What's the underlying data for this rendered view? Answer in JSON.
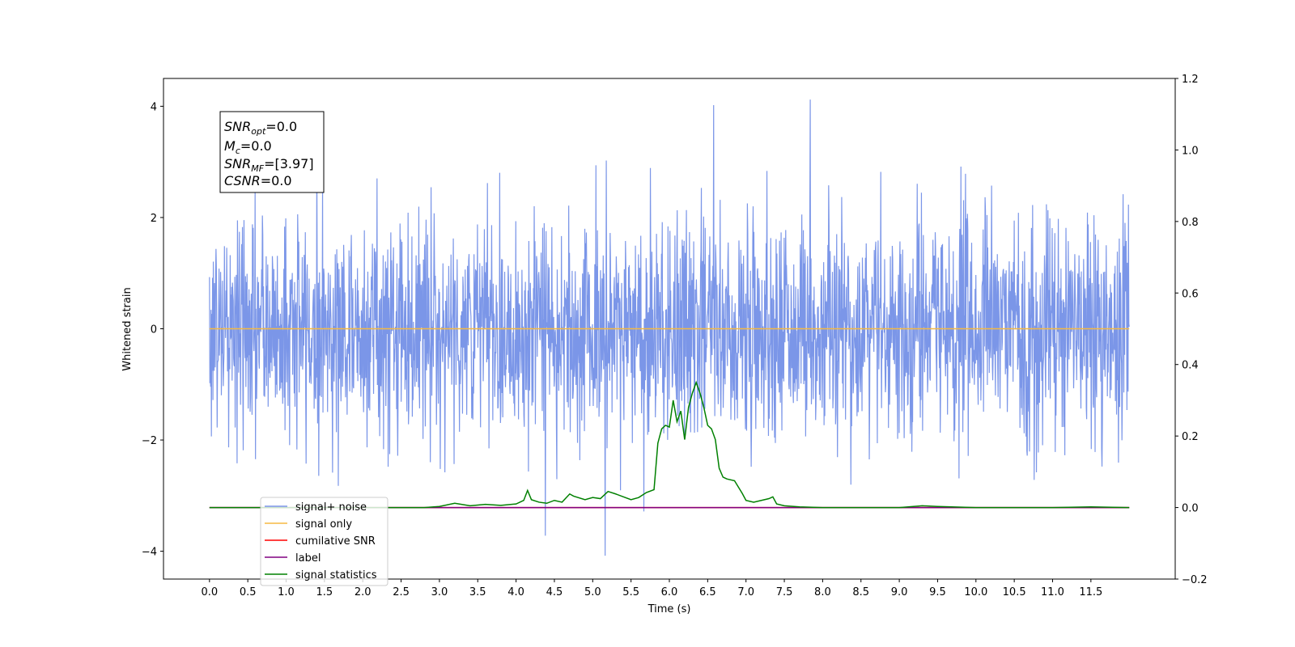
{
  "chart_data": {
    "type": "line",
    "xlabel": "Time (s)",
    "ylabel": "Whitened strain",
    "xlim": [
      -0.6,
      12.6
    ],
    "ylim": [
      -4.5,
      4.5
    ],
    "y2lim": [
      -0.2,
      1.2
    ],
    "x_ticks": [
      "0.0",
      "0.5",
      "1.0",
      "1.5",
      "2.0",
      "2.5",
      "3.0",
      "3.5",
      "4.0",
      "4.5",
      "5.0",
      "5.5",
      "6.0",
      "6.5",
      "7.0",
      "7.5",
      "8.0",
      "8.5",
      "9.0",
      "9.5",
      "10.0",
      "10.5",
      "11.0",
      "11.5"
    ],
    "y_ticks": [
      "-4",
      "-2",
      "0",
      "2",
      "4"
    ],
    "y2_ticks": [
      "-0.2",
      "0.0",
      "0.2",
      "0.4",
      "0.6",
      "0.8",
      "1.0",
      "1.2"
    ],
    "stats_box": {
      "snr_opt": {
        "sym": "SNR",
        "sub": "opt",
        "value": "=0.0"
      },
      "mc": {
        "sym": "M",
        "sub": "c",
        "value": "=0.0"
      },
      "snr_mf": {
        "sym": "SNR",
        "sub": "MF",
        "value": "=[3.97]"
      },
      "csnr": {
        "sym": "CSNR",
        "value": "=0.0"
      }
    },
    "noise": {
      "t_start": 0.0,
      "t_end": 12.0,
      "samples": 2400,
      "std": 1.0,
      "peak_max": 4.12,
      "peak_min": -4.08
    },
    "series": [
      {
        "name": "signal+ noise",
        "color": "#7b96e8",
        "axis": "left",
        "values": "noise"
      },
      {
        "name": "signal only",
        "color": "#f5b942",
        "axis": "left",
        "x": [
          0,
          12
        ],
        "y": [
          0,
          0
        ]
      },
      {
        "name": "cumilative SNR",
        "color": "#ff0000",
        "axis": "right",
        "x": [
          0,
          12
        ],
        "y": [
          0,
          0
        ]
      },
      {
        "name": "label",
        "color": "#800080",
        "axis": "right",
        "x": [
          0,
          12
        ],
        "y": [
          0,
          0
        ]
      },
      {
        "name": "signal statistics",
        "color": "#008000",
        "axis": "right",
        "x": [
          0.0,
          0.5,
          1.0,
          1.5,
          2.0,
          2.5,
          2.8,
          3.0,
          3.2,
          3.4,
          3.6,
          3.8,
          4.0,
          4.1,
          4.15,
          4.2,
          4.3,
          4.4,
          4.5,
          4.6,
          4.7,
          4.75,
          4.9,
          5.0,
          5.1,
          5.2,
          5.3,
          5.4,
          5.5,
          5.6,
          5.7,
          5.8,
          5.85,
          5.9,
          5.95,
          6.0,
          6.05,
          6.1,
          6.15,
          6.2,
          6.25,
          6.3,
          6.35,
          6.4,
          6.45,
          6.5,
          6.55,
          6.6,
          6.65,
          6.7,
          6.75,
          6.85,
          6.95,
          7.0,
          7.1,
          7.2,
          7.3,
          7.35,
          7.4,
          7.5,
          7.7,
          8.0,
          8.5,
          9.0,
          9.3,
          9.5,
          10.0,
          11.0,
          11.5,
          12.0
        ],
        "y": [
          0.0,
          0.0,
          0.0,
          0.0,
          0.0,
          0.0,
          0.0,
          0.003,
          0.012,
          0.005,
          0.009,
          0.006,
          0.01,
          0.02,
          0.048,
          0.022,
          0.015,
          0.012,
          0.02,
          0.015,
          0.038,
          0.032,
          0.022,
          0.028,
          0.025,
          0.045,
          0.038,
          0.03,
          0.022,
          0.028,
          0.042,
          0.05,
          0.18,
          0.22,
          0.23,
          0.225,
          0.3,
          0.24,
          0.27,
          0.19,
          0.28,
          0.32,
          0.35,
          0.32,
          0.28,
          0.23,
          0.22,
          0.19,
          0.11,
          0.085,
          0.08,
          0.075,
          0.04,
          0.02,
          0.015,
          0.02,
          0.025,
          0.03,
          0.01,
          0.005,
          0.002,
          0.0,
          0.0,
          0.0,
          0.005,
          0.003,
          0.0,
          0.0,
          0.002,
          0.0
        ]
      }
    ],
    "legend_position": "lower-left"
  }
}
